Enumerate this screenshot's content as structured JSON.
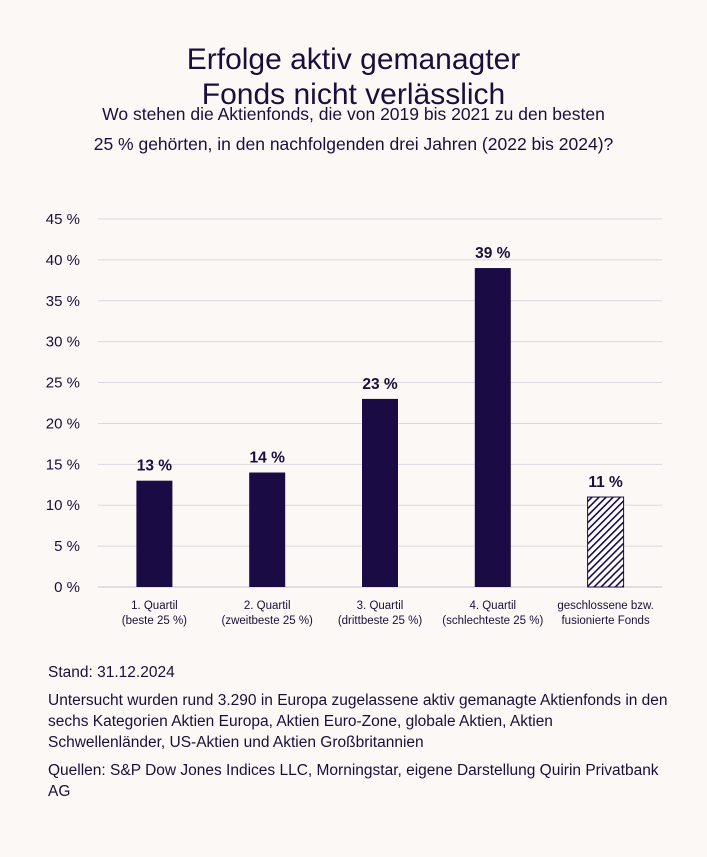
{
  "title_lines": [
    "Erfolge aktiv gemanagter",
    "Fonds nicht verlässlich"
  ],
  "subtitle_lines": [
    "Wo stehen die Aktienfonds, die von 2019 bis 2021 zu den besten",
    "25 % gehörten, in den nachfolgenden drei Jahren (2022 bis 2024)?"
  ],
  "chart_data": {
    "type": "bar",
    "categories": [
      [
        "1. Quartil",
        "(beste 25 %)"
      ],
      [
        "2. Quartil",
        "(zweitbeste 25 %)"
      ],
      [
        "3. Quartil",
        "(drittbeste 25 %)"
      ],
      [
        "4. Quartil",
        "(schlechteste 25 %)"
      ],
      [
        "geschlossene bzw.",
        "fusionierte Fonds"
      ]
    ],
    "values": [
      13,
      14,
      23,
      39,
      11
    ],
    "value_labels": [
      "13 %",
      "14 %",
      "23 %",
      "39 %",
      "11 %"
    ],
    "hatched": [
      false,
      false,
      false,
      false,
      true
    ],
    "ylim": [
      0,
      45
    ],
    "yticks": [
      0,
      5,
      10,
      15,
      20,
      25,
      30,
      35,
      40,
      45
    ],
    "ytick_labels": [
      "0 %",
      "5 %",
      "10 %",
      "15 %",
      "20 %",
      "25 %",
      "30 %",
      "35 %",
      "40 %",
      "45 %"
    ],
    "grid": true,
    "colors": {
      "bar": "#1a0b45",
      "grid": "#ddd8de",
      "text": "#1a0f3c"
    }
  },
  "footer": {
    "stand": "Stand: 31.12.2024",
    "note": "Untersucht wurden rund 3.290 in Europa zugelassene aktiv gemanagte Aktienfonds in den sechs Kategorien Aktien Europa, Aktien Euro-Zone, globale Aktien, Aktien Schwellenländer, US-Aktien und Aktien Großbritannien",
    "sources": "Quellen: S&P Dow Jones Indices LLC, Morningstar, eigene Darstellung Quirin Privatbank AG"
  }
}
